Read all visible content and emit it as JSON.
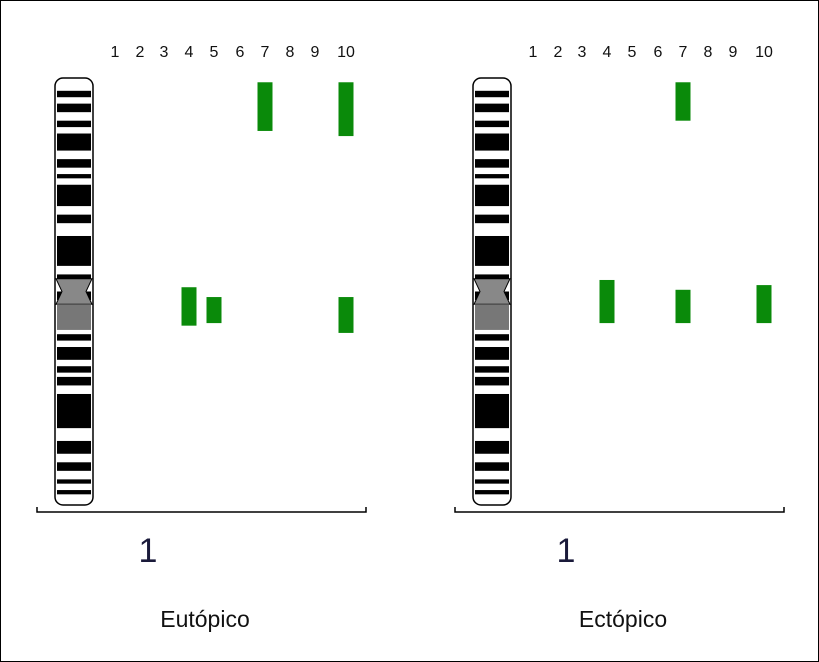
{
  "panels": [
    {
      "columns": [
        "1",
        "2",
        "3",
        "4",
        "5",
        "6",
        "7",
        "8",
        "9",
        "10"
      ],
      "chromosome": "1",
      "title": "Eutópico",
      "segments": [
        {
          "column": 6,
          "start": 1,
          "end": 12.4
        },
        {
          "column": 9,
          "start": 1,
          "end": 13.6
        },
        {
          "column": 3,
          "start": 49,
          "end": 58
        },
        {
          "column": 4,
          "start": 51.3,
          "end": 57.4
        },
        {
          "column": 9,
          "start": 51.3,
          "end": 59.7
        }
      ]
    },
    {
      "columns": [
        "1",
        "2",
        "3",
        "4",
        "5",
        "6",
        "7",
        "8",
        "9",
        "10"
      ],
      "chromosome": "1",
      "title": "Ectópico",
      "segments": [
        {
          "column": 6,
          "start": 1,
          "end": 10
        },
        {
          "column": 3,
          "start": 47.3,
          "end": 57.4
        },
        {
          "column": 6,
          "start": 49.6,
          "end": 57.4
        },
        {
          "column": 9,
          "start": 48.5,
          "end": 57.4
        }
      ]
    }
  ]
}
